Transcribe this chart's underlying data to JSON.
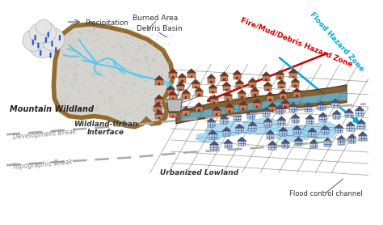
{
  "background_color": "#ffffff",
  "labels": {
    "precipitation": "Precipitation",
    "burned_area": "Burned Area",
    "debris_basin": "Debris Basin",
    "mountain_wildland": "Mountain Wildland",
    "development_break": "Development Break",
    "wui": "Wildland-Urban\nInterface",
    "topographic_break": "Topographic Break",
    "urbanized_lowland": "Urbanized Lowland",
    "fire_mud_debris": "Fire/Mud/Debris Hazard Zone",
    "flood_hazard": "Flood Hazard Zone",
    "flood_control": "Flood control channel"
  },
  "colors": {
    "burned_area_fill": "#d0cfc8",
    "burned_area_border": "#8B5E1A",
    "water_flow": "#5bc8f0",
    "debris_flow": "#7a5020",
    "cloud_fill": "#e5e5e5",
    "cloud_edge": "#bbbbbb",
    "rain_color": "#2255cc",
    "house_wall": "#c8855a",
    "house_roof": "#7a3010",
    "house_door": "#cc1111",
    "house_wall_flood": "#9ab8d8",
    "house_roof_flood": "#445588",
    "dashed_line": "#aaaaaa",
    "fire_mud_arrow": "#cc0000",
    "flood_arrow": "#00aadd",
    "grid_line": "#555555",
    "flood_fill": "#90ccee",
    "debris_channel": "#666655"
  }
}
